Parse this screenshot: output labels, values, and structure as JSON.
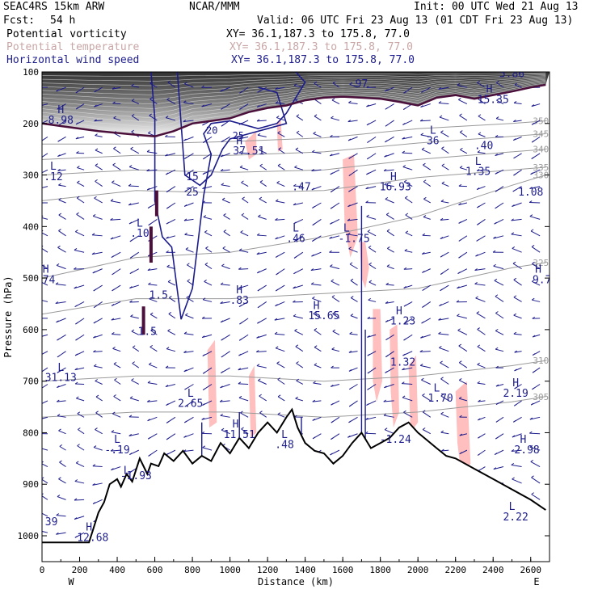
{
  "header": {
    "model": "SEAC4RS 15km ARW",
    "org": "NCAR/MMM",
    "init": "Init: 00 UTC Wed 21 Aug 13",
    "fcst_label": "Fcst:",
    "fcst_value": "54 h",
    "valid": "Valid: 06 UTC Fri 23 Aug 13 (01 CDT Fri 23 Aug 13)",
    "fields": [
      {
        "name": "Potential vorticity",
        "xy": "XY=  36.1,187.3 to 175.8, 77.0"
      },
      {
        "name": "Potential temperature",
        "xy": "XY=  36.1,187.3 to 175.8, 77.0"
      },
      {
        "name": "Horizontal wind speed",
        "xy": "XY=  36.1,187.3 to 175.8, 77.0"
      }
    ]
  },
  "colors": {
    "pv": "#4a0f3a",
    "theta": "#9a9a9a",
    "wind": "#1c1c8c",
    "shade": "#ffbfbf",
    "terrain": "#000000"
  },
  "chart_data": {
    "type": "cross-section",
    "xlabel": "Distance (km)",
    "ylabel": "Pressure (hPa)",
    "xlim": [
      0,
      2700
    ],
    "ylim": [
      1000,
      100
    ],
    "x_ticks": [
      "0",
      "200",
      "400",
      "600",
      "800",
      "1000",
      "1200",
      "1400",
      "1600",
      "1800",
      "2000",
      "2200",
      "2400",
      "2600"
    ],
    "y_ticks": [
      "100",
      "200",
      "300",
      "400",
      "500",
      "600",
      "700",
      "800",
      "900",
      "1000"
    ],
    "west_label": "W",
    "east_label": "E",
    "terrain": [
      [
        0,
        1013
      ],
      [
        250,
        1013
      ],
      [
        270,
        990
      ],
      [
        300,
        955
      ],
      [
        330,
        935
      ],
      [
        360,
        900
      ],
      [
        400,
        890
      ],
      [
        420,
        905
      ],
      [
        450,
        880
      ],
      [
        480,
        895
      ],
      [
        520,
        850
      ],
      [
        560,
        880
      ],
      [
        580,
        860
      ],
      [
        620,
        865
      ],
      [
        650,
        840
      ],
      [
        700,
        855
      ],
      [
        750,
        835
      ],
      [
        800,
        860
      ],
      [
        850,
        845
      ],
      [
        900,
        855
      ],
      [
        950,
        820
      ],
      [
        1000,
        840
      ],
      [
        1050,
        810
      ],
      [
        1100,
        830
      ],
      [
        1150,
        800
      ],
      [
        1200,
        780
      ],
      [
        1250,
        800
      ],
      [
        1300,
        770
      ],
      [
        1330,
        755
      ],
      [
        1360,
        790
      ],
      [
        1400,
        820
      ],
      [
        1450,
        835
      ],
      [
        1500,
        840
      ],
      [
        1550,
        860
      ],
      [
        1600,
        845
      ],
      [
        1650,
        820
      ],
      [
        1700,
        800
      ],
      [
        1750,
        830
      ],
      [
        1800,
        820
      ],
      [
        1850,
        810
      ],
      [
        1900,
        790
      ],
      [
        1950,
        780
      ],
      [
        2000,
        800
      ],
      [
        2050,
        815
      ],
      [
        2100,
        830
      ],
      [
        2150,
        845
      ],
      [
        2200,
        850
      ],
      [
        2300,
        870
      ],
      [
        2400,
        890
      ],
      [
        2500,
        910
      ],
      [
        2600,
        930
      ],
      [
        2680,
        950
      ]
    ],
    "tropopause": [
      [
        0,
        200
      ],
      [
        100,
        205
      ],
      [
        300,
        215
      ],
      [
        500,
        222
      ],
      [
        600,
        225
      ],
      [
        700,
        215
      ],
      [
        800,
        200
      ],
      [
        900,
        195
      ],
      [
        1000,
        190
      ],
      [
        1100,
        178
      ],
      [
        1200,
        170
      ],
      [
        1300,
        165
      ],
      [
        1400,
        155
      ],
      [
        1500,
        150
      ],
      [
        1600,
        148
      ],
      [
        1700,
        150
      ],
      [
        1800,
        152
      ],
      [
        1900,
        158
      ],
      [
        2000,
        165
      ],
      [
        2100,
        150
      ],
      [
        2200,
        145
      ],
      [
        2300,
        152
      ],
      [
        2400,
        145
      ],
      [
        2500,
        138
      ],
      [
        2600,
        130
      ],
      [
        2680,
        125
      ]
    ],
    "theta_contours": [
      {
        "label": "330",
        "pts": [
          [
            0,
            500
          ],
          [
            500,
            460
          ],
          [
            1000,
            450
          ],
          [
            1500,
            420
          ],
          [
            2000,
            380
          ],
          [
            2500,
            320
          ],
          [
            2680,
            300
          ]
        ]
      },
      {
        "label": "325",
        "pts": [
          [
            0,
            570
          ],
          [
            500,
            540
          ],
          [
            1000,
            540
          ],
          [
            1500,
            530
          ],
          [
            2000,
            520
          ],
          [
            2500,
            480
          ],
          [
            2680,
            470
          ]
        ]
      },
      {
        "label": "310",
        "pts": [
          [
            0,
            700
          ],
          [
            500,
            690
          ],
          [
            1000,
            690
          ],
          [
            1500,
            700
          ],
          [
            2000,
            690
          ],
          [
            2500,
            670
          ],
          [
            2680,
            660
          ]
        ]
      },
      {
        "label": "305",
        "pts": [
          [
            0,
            770
          ],
          [
            500,
            760
          ],
          [
            1000,
            760
          ],
          [
            1500,
            770
          ],
          [
            2000,
            760
          ],
          [
            2500,
            740
          ],
          [
            2680,
            730
          ]
        ]
      },
      {
        "label": "335",
        "pts": [
          [
            0,
            350
          ],
          [
            500,
            330
          ],
          [
            1000,
            335
          ],
          [
            1500,
            330
          ],
          [
            2000,
            305
          ],
          [
            2500,
            290
          ],
          [
            2680,
            285
          ]
        ]
      },
      {
        "label": "340",
        "pts": [
          [
            0,
            300
          ],
          [
            500,
            290
          ],
          [
            1000,
            295
          ],
          [
            1500,
            290
          ],
          [
            2000,
            270
          ],
          [
            2500,
            255
          ],
          [
            2680,
            250
          ]
        ]
      },
      {
        "label": "345",
        "pts": [
          [
            0,
            270
          ],
          [
            500,
            262
          ],
          [
            1000,
            262
          ],
          [
            1500,
            255
          ],
          [
            2000,
            238
          ],
          [
            2500,
            225
          ],
          [
            2680,
            220
          ]
        ]
      },
      {
        "label": "350",
        "pts": [
          [
            0,
            240
          ],
          [
            500,
            240
          ],
          [
            1000,
            235
          ],
          [
            1500,
            228
          ],
          [
            2000,
            210
          ],
          [
            2500,
            200
          ],
          [
            2680,
            195
          ]
        ]
      }
    ],
    "wind_contours": [
      {
        "label": "20",
        "pts": [
          [
            580,
            100
          ],
          [
            600,
            190
          ],
          [
            600,
            350
          ],
          [
            640,
            420
          ],
          [
            690,
            440
          ],
          [
            740,
            580
          ],
          [
            800,
            520
          ],
          [
            860,
            340
          ],
          [
            900,
            260
          ],
          [
            860,
            220
          ],
          [
            900,
            200
          ],
          [
            1000,
            195
          ],
          [
            1150,
            210
          ],
          [
            1250,
            200
          ],
          [
            1300,
            180
          ],
          [
            1350,
            150
          ],
          [
            1400,
            120
          ],
          [
            1350,
            100
          ]
        ]
      },
      {
        "label": "25",
        "pts": [
          [
            720,
            100
          ],
          [
            740,
            200
          ],
          [
            760,
            300
          ],
          [
            840,
            320
          ],
          [
            900,
            300
          ],
          [
            960,
            250
          ],
          [
            1000,
            230
          ],
          [
            1100,
            220
          ],
          [
            1200,
            210
          ],
          [
            1300,
            200
          ],
          [
            1250,
            140
          ],
          [
            1150,
            130
          ]
        ]
      }
    ],
    "shade_regions": [
      [
        [
          1080,
          235
        ],
        [
          1140,
          215
        ],
        [
          1140,
          260
        ],
        [
          1100,
          270
        ]
      ],
      [
        [
          1250,
          200
        ],
        [
          1270,
          190
        ],
        [
          1280,
          250
        ],
        [
          1255,
          255
        ]
      ],
      [
        [
          1600,
          270
        ],
        [
          1660,
          260
        ],
        [
          1680,
          420
        ],
        [
          1640,
          460
        ],
        [
          1610,
          400
        ]
      ],
      [
        [
          1690,
          430
        ],
        [
          1720,
          430
        ],
        [
          1740,
          480
        ],
        [
          1720,
          520
        ],
        [
          1700,
          500
        ]
      ],
      [
        [
          1760,
          560
        ],
        [
          1800,
          560
        ],
        [
          1810,
          700
        ],
        [
          1780,
          740
        ],
        [
          1760,
          700
        ]
      ],
      [
        [
          1850,
          600
        ],
        [
          1890,
          590
        ],
        [
          1900,
          760
        ],
        [
          1870,
          790
        ],
        [
          1855,
          720
        ]
      ],
      [
        [
          1950,
          670
        ],
        [
          1990,
          650
        ],
        [
          2000,
          780
        ],
        [
          1960,
          800
        ]
      ],
      [
        [
          2200,
          720
        ],
        [
          2260,
          700
        ],
        [
          2280,
          860
        ],
        [
          2230,
          880
        ],
        [
          2210,
          820
        ]
      ],
      [
        [
          880,
          640
        ],
        [
          920,
          620
        ],
        [
          930,
          780
        ],
        [
          890,
          790
        ]
      ],
      [
        [
          1100,
          690
        ],
        [
          1130,
          670
        ],
        [
          1140,
          800
        ],
        [
          1110,
          810
        ]
      ]
    ],
    "annotations": [
      {
        "x": 100,
        "y": 180,
        "text": "H"
      },
      {
        "x": 100,
        "y": 200,
        "text": "8.98"
      },
      {
        "x": 60,
        "y": 290,
        "text": "L"
      },
      {
        "x": 60,
        "y": 310,
        "text": ".12"
      },
      {
        "x": 20,
        "y": 490,
        "text": "H"
      },
      {
        "x": 20,
        "y": 510,
        "text": ".74"
      },
      {
        "x": 100,
        "y": 680,
        "text": "L"
      },
      {
        "x": 100,
        "y": 700,
        "text": "31.13"
      },
      {
        "x": 520,
        "y": 400,
        "text": "L"
      },
      {
        "x": 520,
        "y": 420,
        "text": ".10"
      },
      {
        "x": 560,
        "y": 610,
        "text": "1.5"
      },
      {
        "x": 620,
        "y": 540,
        "text": "1.5"
      },
      {
        "x": 1050,
        "y": 240,
        "text": "H"
      },
      {
        "x": 1100,
        "y": 260,
        "text": "37.51"
      },
      {
        "x": 800,
        "y": 310,
        "text": "15"
      },
      {
        "x": 800,
        "y": 340,
        "text": "25"
      },
      {
        "x": 1350,
        "y": 410,
        "text": "L"
      },
      {
        "x": 1350,
        "y": 430,
        "text": ".46"
      },
      {
        "x": 1380,
        "y": 330,
        "text": ".47"
      },
      {
        "x": 1620,
        "y": 410,
        "text": "L"
      },
      {
        "x": 1660,
        "y": 430,
        "text": "-1.75"
      },
      {
        "x": 1870,
        "y": 310,
        "text": "H"
      },
      {
        "x": 1880,
        "y": 330,
        "text": "16.93"
      },
      {
        "x": 2080,
        "y": 220,
        "text": "L"
      },
      {
        "x": 2080,
        "y": 240,
        "text": "36"
      },
      {
        "x": 2320,
        "y": 280,
        "text": "L"
      },
      {
        "x": 2320,
        "y": 300,
        "text": "1.35"
      },
      {
        "x": 2350,
        "y": 250,
        "text": ".40"
      },
      {
        "x": 2380,
        "y": 140,
        "text": "H"
      },
      {
        "x": 2400,
        "y": 160,
        "text": "15.35"
      },
      {
        "x": 2600,
        "y": 340,
        "text": "1.08"
      },
      {
        "x": 2640,
        "y": 490,
        "text": "H"
      },
      {
        "x": 2660,
        "y": 510,
        "text": "9.7"
      },
      {
        "x": 1050,
        "y": 530,
        "text": "H"
      },
      {
        "x": 1050,
        "y": 550,
        "text": ".83"
      },
      {
        "x": 1460,
        "y": 560,
        "text": "H"
      },
      {
        "x": 1500,
        "y": 580,
        "text": "15.65"
      },
      {
        "x": 1900,
        "y": 570,
        "text": "H"
      },
      {
        "x": 1920,
        "y": 590,
        "text": "1.23"
      },
      {
        "x": 1920,
        "y": 670,
        "text": "1.32"
      },
      {
        "x": 2100,
        "y": 720,
        "text": "L"
      },
      {
        "x": 2120,
        "y": 740,
        "text": "1.70"
      },
      {
        "x": 2520,
        "y": 710,
        "text": "H"
      },
      {
        "x": 2520,
        "y": 730,
        "text": "2.19"
      },
      {
        "x": 2560,
        "y": 820,
        "text": "H"
      },
      {
        "x": 2580,
        "y": 840,
        "text": "2.98"
      },
      {
        "x": 2500,
        "y": 950,
        "text": "L"
      },
      {
        "x": 2520,
        "y": 970,
        "text": "2.22"
      },
      {
        "x": 790,
        "y": 730,
        "text": "L"
      },
      {
        "x": 790,
        "y": 750,
        "text": "2.65"
      },
      {
        "x": 1030,
        "y": 790,
        "text": "H"
      },
      {
        "x": 1050,
        "y": 810,
        "text": "11.51"
      },
      {
        "x": 1290,
        "y": 810,
        "text": "L"
      },
      {
        "x": 1290,
        "y": 830,
        "text": ".48"
      },
      {
        "x": 1880,
        "y": 820,
        "text": "-1.24"
      },
      {
        "x": 400,
        "y": 820,
        "text": "L"
      },
      {
        "x": 400,
        "y": 840,
        "text": "-.19"
      },
      {
        "x": 450,
        "y": 880,
        "text": "L"
      },
      {
        "x": 500,
        "y": 890,
        "text": "-1.93"
      },
      {
        "x": 250,
        "y": 990,
        "text": "H"
      },
      {
        "x": 270,
        "y": 1010,
        "text": "12.68"
      },
      {
        "x": 50,
        "y": 980,
        "text": "39"
      },
      {
        "x": 1700,
        "y": 130,
        "text": "97"
      },
      {
        "x": 2500,
        "y": 110,
        "text": "5.86"
      }
    ]
  }
}
